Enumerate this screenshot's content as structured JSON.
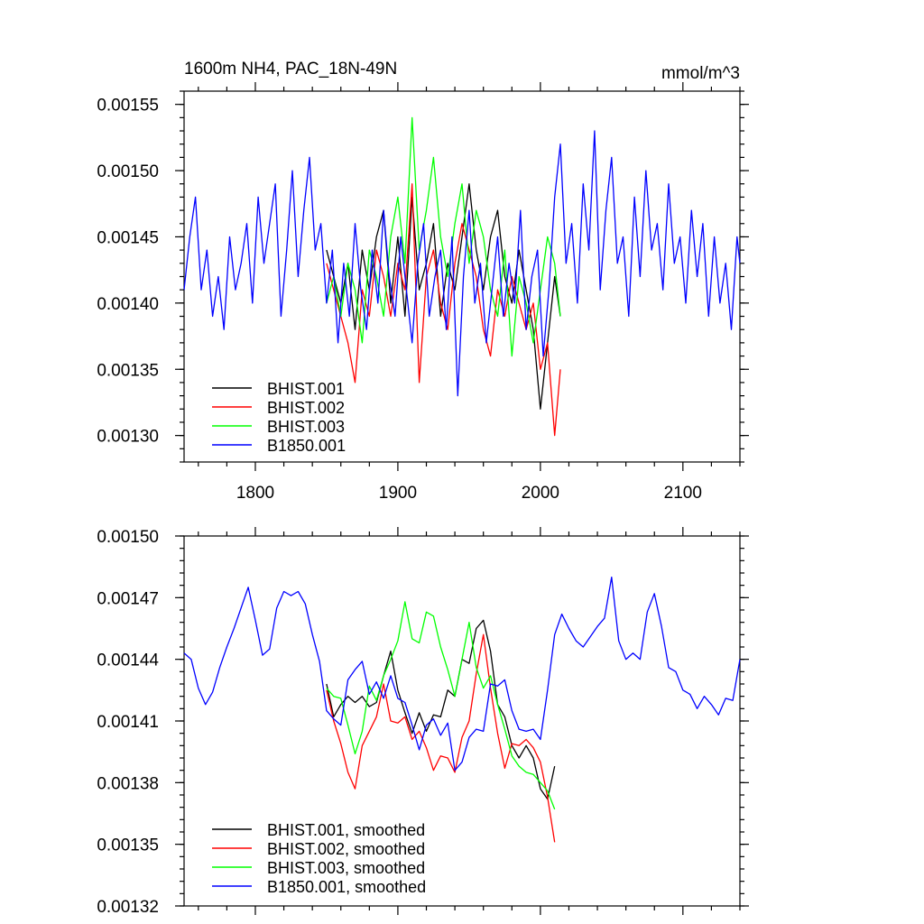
{
  "chart_data": [
    {
      "type": "line",
      "title_left": "1600m NH4, PAC_18N-49N",
      "title_right": "mmol/m^3",
      "xlabel": "",
      "ylabel": "",
      "xlim": [
        1750,
        2140
      ],
      "ylim": [
        0.00128,
        0.00156
      ],
      "x_ticks": [
        1800,
        1900,
        2000,
        2100
      ],
      "x_tick_labels": [
        "1800",
        "1900",
        "2000",
        "2100"
      ],
      "y_ticks": [
        0.0013,
        0.00135,
        0.0014,
        0.00145,
        0.0015,
        0.00155
      ],
      "y_tick_labels": [
        "0.00130",
        "0.00135",
        "0.00140",
        "0.00145",
        "0.00150",
        "0.00155"
      ],
      "legend_position": "lower-left",
      "series": [
        {
          "name": "BHIST.001",
          "color": "#000000",
          "x": [
            1850,
            1855,
            1860,
            1865,
            1870,
            1875,
            1880,
            1885,
            1890,
            1895,
            1900,
            1905,
            1910,
            1915,
            1920,
            1925,
            1930,
            1935,
            1940,
            1945,
            1950,
            1955,
            1960,
            1965,
            1970,
            1975,
            1980,
            1985,
            1990,
            1995,
            2000,
            2005,
            2010,
            2014
          ],
          "y": [
            0.00144,
            0.00142,
            0.0014,
            0.00143,
            0.00138,
            0.00144,
            0.00141,
            0.00145,
            0.00147,
            0.0014,
            0.00145,
            0.00139,
            0.00148,
            0.00141,
            0.00143,
            0.00146,
            0.00139,
            0.00143,
            0.00141,
            0.00145,
            0.00149,
            0.00144,
            0.00141,
            0.00145,
            0.00147,
            0.00142,
            0.0014,
            0.00144,
            0.00141,
            0.00138,
            0.00132,
            0.00137,
            0.00142,
            0.00139
          ]
        },
        {
          "name": "BHIST.002",
          "color": "#ff0000",
          "x": [
            1850,
            1855,
            1860,
            1865,
            1870,
            1875,
            1880,
            1885,
            1890,
            1895,
            1900,
            1905,
            1910,
            1915,
            1920,
            1925,
            1930,
            1935,
            1940,
            1945,
            1950,
            1955,
            1960,
            1965,
            1970,
            1975,
            1980,
            1985,
            1990,
            1995,
            2000,
            2005,
            2010,
            2014
          ],
          "y": [
            0.00143,
            0.00141,
            0.00139,
            0.00137,
            0.00134,
            0.00141,
            0.00139,
            0.00144,
            0.00142,
            0.00139,
            0.00143,
            0.00141,
            0.00149,
            0.00134,
            0.00142,
            0.00144,
            0.0014,
            0.00138,
            0.00143,
            0.00146,
            0.00144,
            0.00142,
            0.00138,
            0.00136,
            0.00141,
            0.00139,
            0.00142,
            0.0014,
            0.00138,
            0.0014,
            0.00135,
            0.00137,
            0.0013,
            0.00135
          ]
        },
        {
          "name": "BHIST.003",
          "color": "#00ff00",
          "x": [
            1850,
            1855,
            1860,
            1865,
            1870,
            1875,
            1880,
            1885,
            1890,
            1895,
            1900,
            1905,
            1910,
            1915,
            1920,
            1925,
            1930,
            1935,
            1940,
            1945,
            1950,
            1955,
            1960,
            1965,
            1970,
            1975,
            1980,
            1985,
            1990,
            1995,
            2000,
            2005,
            2010,
            2014
          ],
          "y": [
            0.0014,
            0.00142,
            0.00139,
            0.00143,
            0.00141,
            0.00137,
            0.00144,
            0.00142,
            0.00139,
            0.00145,
            0.00148,
            0.00143,
            0.00154,
            0.00144,
            0.00147,
            0.00151,
            0.00145,
            0.00142,
            0.00146,
            0.00149,
            0.00143,
            0.00147,
            0.00145,
            0.00141,
            0.00139,
            0.00144,
            0.00136,
            0.00142,
            0.0014,
            0.00137,
            0.00141,
            0.00145,
            0.00143,
            0.00139
          ]
        },
        {
          "name": "B1850.001",
          "color": "#0000ff",
          "x": [
            1750,
            1754,
            1758,
            1762,
            1766,
            1770,
            1774,
            1778,
            1782,
            1786,
            1790,
            1794,
            1798,
            1802,
            1806,
            1810,
            1814,
            1818,
            1822,
            1826,
            1830,
            1834,
            1838,
            1842,
            1846,
            1850,
            1854,
            1858,
            1862,
            1866,
            1870,
            1874,
            1878,
            1882,
            1886,
            1890,
            1894,
            1898,
            1902,
            1906,
            1910,
            1914,
            1918,
            1922,
            1926,
            1930,
            1934,
            1938,
            1942,
            1946,
            1950,
            1954,
            1958,
            1962,
            1966,
            1970,
            1974,
            1978,
            1982,
            1986,
            1990,
            1994,
            1998,
            2002,
            2006,
            2010,
            2014,
            2018,
            2022,
            2026,
            2030,
            2034,
            2038,
            2042,
            2046,
            2050,
            2054,
            2058,
            2062,
            2066,
            2070,
            2074,
            2078,
            2082,
            2086,
            2090,
            2094,
            2098,
            2102,
            2106,
            2110,
            2114,
            2118,
            2122,
            2126,
            2130,
            2134,
            2138,
            2140
          ],
          "y": [
            0.00141,
            0.00145,
            0.00148,
            0.00141,
            0.00144,
            0.00139,
            0.00142,
            0.00138,
            0.00145,
            0.00141,
            0.00143,
            0.00146,
            0.0014,
            0.00148,
            0.00143,
            0.00146,
            0.00149,
            0.00139,
            0.00144,
            0.0015,
            0.00142,
            0.00147,
            0.00151,
            0.00144,
            0.00146,
            0.0014,
            0.00144,
            0.00137,
            0.00143,
            0.00139,
            0.00146,
            0.00141,
            0.00138,
            0.00144,
            0.0014,
            0.00147,
            0.00142,
            0.00139,
            0.00145,
            0.00141,
            0.00137,
            0.00143,
            0.00146,
            0.00139,
            0.00142,
            0.00144,
            0.00138,
            0.00145,
            0.00133,
            0.00142,
            0.00147,
            0.0014,
            0.00143,
            0.00137,
            0.00141,
            0.00145,
            0.00139,
            0.00143,
            0.0014,
            0.00147,
            0.00138,
            0.00142,
            0.00144,
            0.00136,
            0.00141,
            0.00148,
            0.00152,
            0.00143,
            0.00146,
            0.0014,
            0.00149,
            0.00144,
            0.00153,
            0.00141,
            0.00147,
            0.00151,
            0.00143,
            0.00145,
            0.00139,
            0.00148,
            0.00142,
            0.0015,
            0.00144,
            0.00146,
            0.00141,
            0.00149,
            0.00143,
            0.00145,
            0.0014,
            0.00147,
            0.00142,
            0.00146,
            0.00139,
            0.00145,
            0.0014,
            0.00143,
            0.00138,
            0.00145,
            0.00143
          ]
        }
      ]
    },
    {
      "type": "line",
      "xlabel": "",
      "ylabel": "",
      "xlim": [
        1750,
        2140
      ],
      "ylim": [
        0.00132,
        0.0015
      ],
      "x_ticks": [
        1800,
        1900,
        2000,
        2100
      ],
      "y_ticks": [
        0.00132,
        0.00135,
        0.00138,
        0.00141,
        0.00144,
        0.00147,
        0.0015
      ],
      "y_tick_labels": [
        "0.00132",
        "0.00135",
        "0.00138",
        "0.00141",
        "0.00144",
        "0.00147",
        "0.00150"
      ],
      "legend_position": "lower-left",
      "series": [
        {
          "name": "BHIST.001, smoothed",
          "color": "#000000",
          "x": [
            1850,
            1855,
            1860,
            1865,
            1870,
            1875,
            1880,
            1885,
            1890,
            1895,
            1900,
            1905,
            1910,
            1915,
            1920,
            1925,
            1930,
            1935,
            1940,
            1945,
            1950,
            1955,
            1960,
            1965,
            1970,
            1975,
            1980,
            1985,
            1990,
            1995,
            2000,
            2005,
            2010
          ],
          "y": [
            0.001428,
            0.001412,
            0.001418,
            0.001422,
            0.001419,
            0.001422,
            0.001417,
            0.001419,
            0.001432,
            0.001444,
            0.001425,
            0.001414,
            0.001404,
            0.001414,
            0.001405,
            0.001413,
            0.001412,
            0.001425,
            0.001422,
            0.00144,
            0.001438,
            0.001455,
            0.001459,
            0.001444,
            0.001418,
            0.001412,
            0.001398,
            0.001392,
            0.001398,
            0.001392,
            0.001377,
            0.001372,
            0.001388
          ]
        },
        {
          "name": "BHIST.002, smoothed",
          "color": "#ff0000",
          "x": [
            1850,
            1855,
            1860,
            1865,
            1870,
            1875,
            1880,
            1885,
            1890,
            1895,
            1900,
            1905,
            1910,
            1915,
            1920,
            1925,
            1930,
            1935,
            1940,
            1945,
            1950,
            1955,
            1960,
            1965,
            1970,
            1975,
            1980,
            1985,
            1990,
            1995,
            2000,
            2005,
            2010
          ],
          "y": [
            0.001425,
            0.00141,
            0.001399,
            0.001385,
            0.001377,
            0.001398,
            0.001405,
            0.001412,
            0.001428,
            0.00141,
            0.001409,
            0.001412,
            0.001401,
            0.001405,
            0.001397,
            0.001386,
            0.001393,
            0.001392,
            0.001385,
            0.001402,
            0.00141,
            0.001433,
            0.001452,
            0.001426,
            0.001404,
            0.001387,
            0.001399,
            0.001398,
            0.001401,
            0.001397,
            0.00139,
            0.001373,
            0.001351
          ]
        },
        {
          "name": "BHIST.003, smoothed",
          "color": "#00ff00",
          "x": [
            1850,
            1855,
            1860,
            1865,
            1870,
            1875,
            1880,
            1885,
            1890,
            1895,
            1900,
            1905,
            1910,
            1915,
            1920,
            1925,
            1930,
            1935,
            1940,
            1945,
            1950,
            1955,
            1960,
            1965,
            1970,
            1975,
            1980,
            1985,
            1990,
            1995,
            2000,
            2005,
            2010
          ],
          "y": [
            0.001426,
            0.001422,
            0.001421,
            0.001408,
            0.001394,
            0.001405,
            0.001427,
            0.00142,
            0.001432,
            0.00144,
            0.001449,
            0.001468,
            0.00145,
            0.001448,
            0.001463,
            0.001461,
            0.001446,
            0.001435,
            0.001422,
            0.00144,
            0.001458,
            0.001436,
            0.001426,
            0.001432,
            0.001418,
            0.001406,
            0.001393,
            0.001388,
            0.001385,
            0.001384,
            0.00138,
            0.001376,
            0.001367
          ]
        },
        {
          "name": "B1850.001, smoothed",
          "color": "#0000ff",
          "x": [
            1750,
            1755,
            1760,
            1765,
            1770,
            1775,
            1780,
            1785,
            1790,
            1795,
            1800,
            1805,
            1810,
            1815,
            1820,
            1825,
            1830,
            1835,
            1840,
            1845,
            1850,
            1855,
            1860,
            1865,
            1870,
            1875,
            1880,
            1885,
            1890,
            1895,
            1900,
            1905,
            1910,
            1915,
            1920,
            1925,
            1930,
            1935,
            1940,
            1945,
            1950,
            1955,
            1960,
            1965,
            1970,
            1975,
            1980,
            1985,
            1990,
            1995,
            2000,
            2005,
            2010,
            2015,
            2020,
            2025,
            2030,
            2035,
            2040,
            2045,
            2050,
            2055,
            2060,
            2065,
            2070,
            2075,
            2080,
            2085,
            2090,
            2095,
            2100,
            2105,
            2110,
            2115,
            2120,
            2125,
            2130,
            2135,
            2140
          ],
          "y": [
            0.001443,
            0.00144,
            0.001426,
            0.001418,
            0.001424,
            0.001436,
            0.001446,
            0.001455,
            0.001465,
            0.001475,
            0.001459,
            0.001442,
            0.001445,
            0.001465,
            0.001473,
            0.001471,
            0.001473,
            0.001467,
            0.001452,
            0.001439,
            0.001415,
            0.001411,
            0.001408,
            0.00143,
            0.001435,
            0.001439,
            0.001423,
            0.001429,
            0.001421,
            0.001432,
            0.001421,
            0.001419,
            0.001408,
            0.001396,
            0.001408,
            0.001411,
            0.001403,
            0.001409,
            0.001386,
            0.00139,
            0.001402,
            0.001406,
            0.001405,
            0.001428,
            0.001427,
            0.00143,
            0.001415,
            0.001406,
            0.001405,
            0.001406,
            0.001401,
            0.001425,
            0.001452,
            0.001462,
            0.001455,
            0.001449,
            0.001446,
            0.001451,
            0.001456,
            0.00146,
            0.00148,
            0.001449,
            0.00144,
            0.001443,
            0.00144,
            0.001463,
            0.001472,
            0.001456,
            0.001436,
            0.001434,
            0.001425,
            0.001423,
            0.001416,
            0.001422,
            0.001418,
            0.001413,
            0.001421,
            0.00142,
            0.00144
          ]
        }
      ]
    }
  ]
}
